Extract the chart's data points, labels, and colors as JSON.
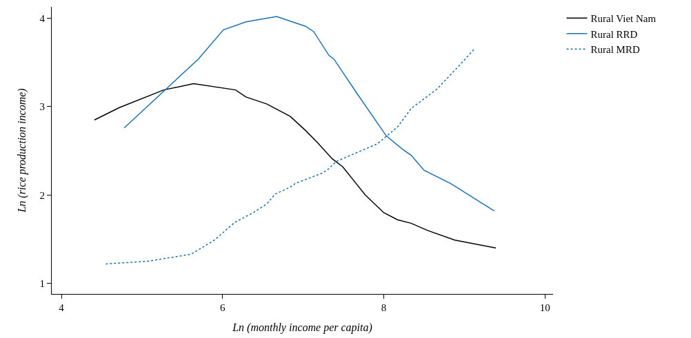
{
  "chart_data": {
    "type": "line",
    "xlabel": "Ln (monthly income per capita)",
    "ylabel": "Ln (rice production income)",
    "xlim": [
      3.88,
      10.1
    ],
    "ylim": [
      0.88,
      4.13
    ],
    "xticks": [
      4,
      6,
      8,
      10
    ],
    "yticks": [
      1,
      2,
      3,
      4
    ],
    "legend": "top right",
    "marker": "none",
    "series": [
      {
        "name": "Rural Viet Nam",
        "color": "#000000",
        "line_style": "solid",
        "x": [
          4.41,
          4.72,
          5.27,
          5.64,
          6.16,
          6.29,
          6.55,
          6.84,
          7.03,
          7.18,
          7.36,
          7.49,
          7.77,
          8.0,
          8.17,
          8.34,
          8.54,
          8.88,
          9.39
        ],
        "values": [
          2.85,
          2.99,
          3.19,
          3.26,
          3.19,
          3.11,
          3.03,
          2.89,
          2.73,
          2.59,
          2.41,
          2.32,
          2.0,
          1.8,
          1.72,
          1.68,
          1.6,
          1.49,
          1.4
        ]
      },
      {
        "name": "Rural RRD",
        "color": "#1a6faf",
        "line_style": "solid",
        "x": [
          4.78,
          5.7,
          6.01,
          6.29,
          6.67,
          7.03,
          7.13,
          7.32,
          7.38,
          7.66,
          8.03,
          8.23,
          8.34,
          8.5,
          8.83,
          9.37
        ],
        "values": [
          2.76,
          3.54,
          3.87,
          3.96,
          4.02,
          3.91,
          3.85,
          3.58,
          3.54,
          3.16,
          2.67,
          2.52,
          2.45,
          2.28,
          2.13,
          1.82
        ]
      },
      {
        "name": "Rural MRD",
        "color": "#1a6faf",
        "line_style": "dotted",
        "x": [
          4.55,
          5.07,
          5.61,
          5.9,
          6.15,
          6.38,
          6.55,
          6.65,
          6.84,
          6.9,
          7.24,
          7.32,
          7.41,
          7.92,
          8.17,
          8.34,
          8.66,
          8.94,
          9.13
        ],
        "values": [
          1.22,
          1.25,
          1.33,
          1.49,
          1.69,
          1.8,
          1.9,
          2.01,
          2.09,
          2.13,
          2.25,
          2.3,
          2.38,
          2.58,
          2.77,
          2.98,
          3.2,
          3.47,
          3.66
        ]
      }
    ]
  }
}
